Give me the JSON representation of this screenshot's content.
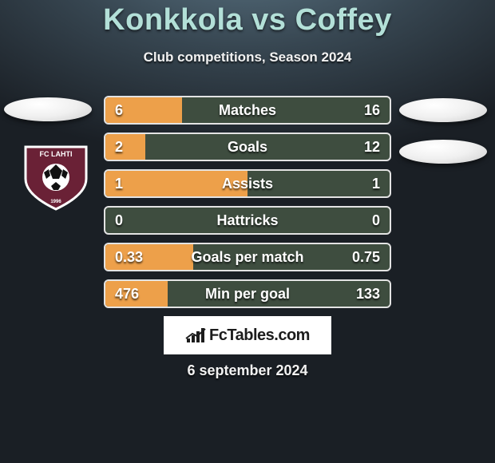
{
  "title": "Konkkola vs Coffey",
  "subtitle": "Club competitions, Season 2024",
  "date": "6 september 2024",
  "title_color": "#b3e0d8",
  "text_color": "#f2f2f2",
  "background_color": "#1a1f25",
  "brand": {
    "text": "FcTables.com",
    "bg": "#ffffff",
    "icon_bars": [
      5,
      9,
      14,
      18
    ]
  },
  "badge": {
    "label": "FC LAHTI",
    "year": "1996",
    "shield_color": "#6a2136",
    "border_color": "#ffffff",
    "ball_color": "#ffffff"
  },
  "avatars": {
    "left": {
      "bg": "#f0f0f0"
    },
    "right": {
      "bg": "#f0f0f0"
    }
  },
  "stats": {
    "fill_color": "#eda04a",
    "empty_color": "#3e4d3f",
    "border_color": "#e3e3e3",
    "rows": [
      {
        "label": "Matches",
        "left": "6",
        "right": "16",
        "fill_pct": 27
      },
      {
        "label": "Goals",
        "left": "2",
        "right": "12",
        "fill_pct": 14
      },
      {
        "label": "Assists",
        "left": "1",
        "right": "1",
        "fill_pct": 50
      },
      {
        "label": "Hattricks",
        "left": "0",
        "right": "0",
        "fill_pct": 0
      },
      {
        "label": "Goals per match",
        "left": "0.33",
        "right": "0.75",
        "fill_pct": 31
      },
      {
        "label": "Min per goal",
        "left": "476",
        "right": "133",
        "fill_pct": 22
      }
    ]
  }
}
